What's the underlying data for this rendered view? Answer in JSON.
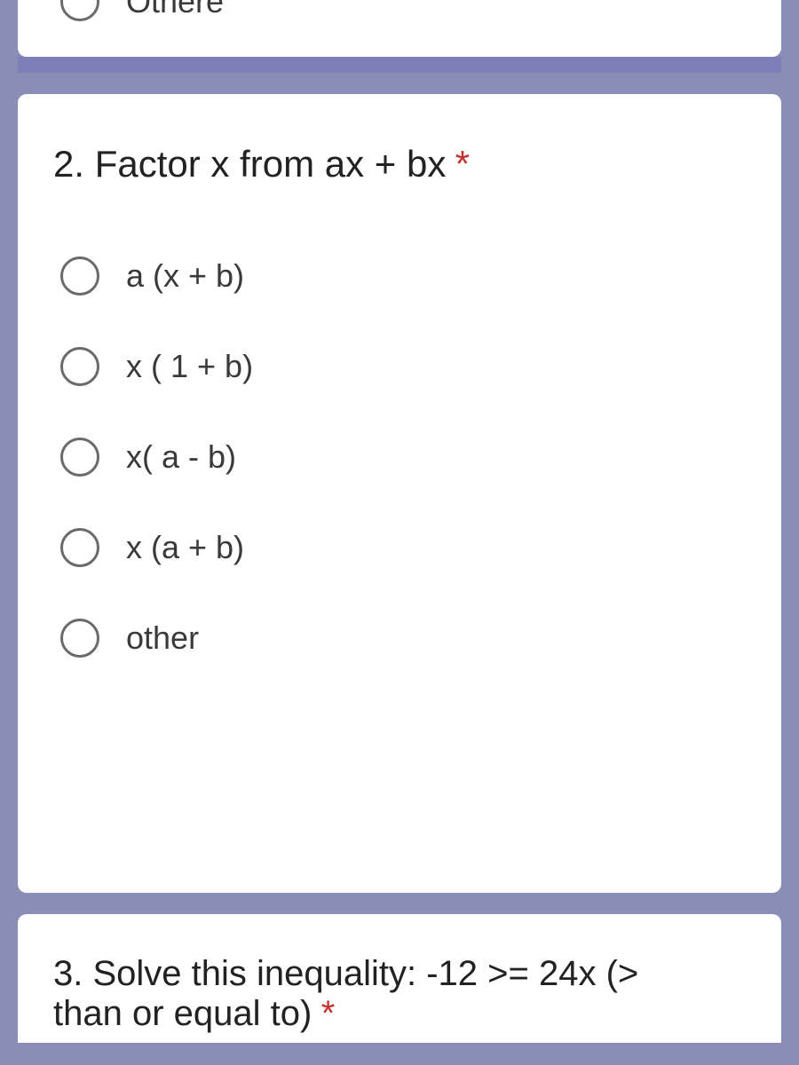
{
  "colors": {
    "page_background": "#8a8db5",
    "card_background": "#ffffff",
    "divider": "#7e7fb8",
    "text_primary": "#222222",
    "text_option": "#3a3a3a",
    "radio_border": "#6a6a6a",
    "required_asterisk": "#c5302c"
  },
  "partial_top_option": {
    "label": "Othere"
  },
  "question2": {
    "title": "2. Factor x from ax + bx",
    "required": "*",
    "options": [
      {
        "label": "a (x + b)"
      },
      {
        "label": "x ( 1 + b)"
      },
      {
        "label": "x( a - b)"
      },
      {
        "label": "x (a + b)"
      },
      {
        "label": "other"
      }
    ]
  },
  "question3": {
    "title_line1": "3. Solve this inequality: -12 >= 24x (>",
    "title_line2": "than or equal to)",
    "required": "*"
  }
}
